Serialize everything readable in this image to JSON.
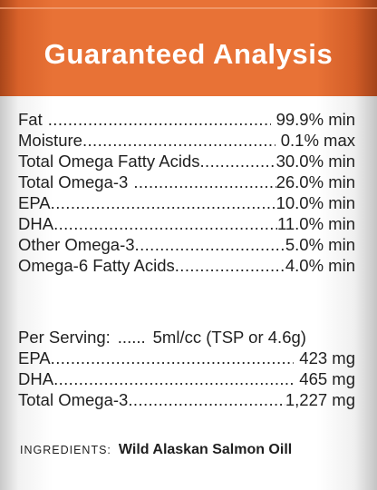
{
  "header": {
    "title": "Guaranteed Analysis"
  },
  "analysis": [
    {
      "label": "Fat",
      "value": "99.9% min"
    },
    {
      "label": "Moisture",
      "value": "0.1% max"
    },
    {
      "label": "Total Omega Fatty Acids",
      "value": "30.0% min"
    },
    {
      "label": "Total Omega-3",
      "value": "26.0% min"
    },
    {
      "label": "EPA",
      "value": "10.0% min"
    },
    {
      "label": "DHA",
      "value": "11.0% min"
    },
    {
      "label": "Other Omega-3",
      "value": "5.0% min"
    },
    {
      "label": "Omega-6 Fatty Acids",
      "value": "4.0% min"
    }
  ],
  "serving": {
    "label": "Per Serving:",
    "dots": "......",
    "value": "5ml/cc (TSP or 4.6g)"
  },
  "per_serving": [
    {
      "label": "EPA",
      "value": "423 mg"
    },
    {
      "label": "DHA",
      "value": "465 mg"
    },
    {
      "label": "Total Omega-3",
      "value": "1,227 mg"
    }
  ],
  "ingredients": {
    "label": "INGREDIENTS:",
    "value": "Wild Alaskan Salmon Oill"
  }
}
